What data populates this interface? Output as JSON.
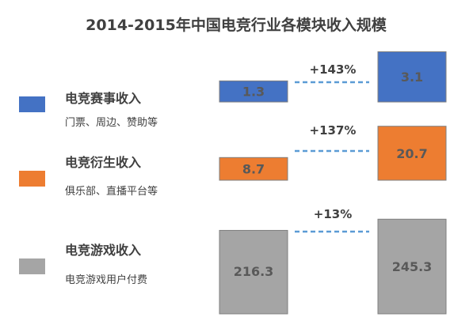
{
  "chart_data": {
    "type": "bar",
    "title": "2014-2015年中国电竞行业各模块收入规模",
    "categories": [
      "电竞赛事收入",
      "电竞衍生收入",
      "电竞游戏收入"
    ],
    "subtitles": [
      "门票、周边、赞助等",
      "俱乐部、直播平台等",
      "电竞游戏用户付费"
    ],
    "series": [
      {
        "values": [
          1.3,
          8.7,
          216.3
        ]
      },
      {
        "values": [
          3.1,
          20.7,
          245.3
        ]
      }
    ],
    "value_labels": [
      [
        "1.3",
        "3.1"
      ],
      [
        "8.7",
        "20.7"
      ],
      [
        "216.3",
        "245.3"
      ]
    ],
    "growth_labels": [
      "+143%",
      "+137%",
      "+13%"
    ],
    "colors": [
      "#4472C4",
      "#ED7D31",
      "#A5A5A5"
    ],
    "dash_color": "#5B9BD5",
    "label_color": "#595959"
  }
}
